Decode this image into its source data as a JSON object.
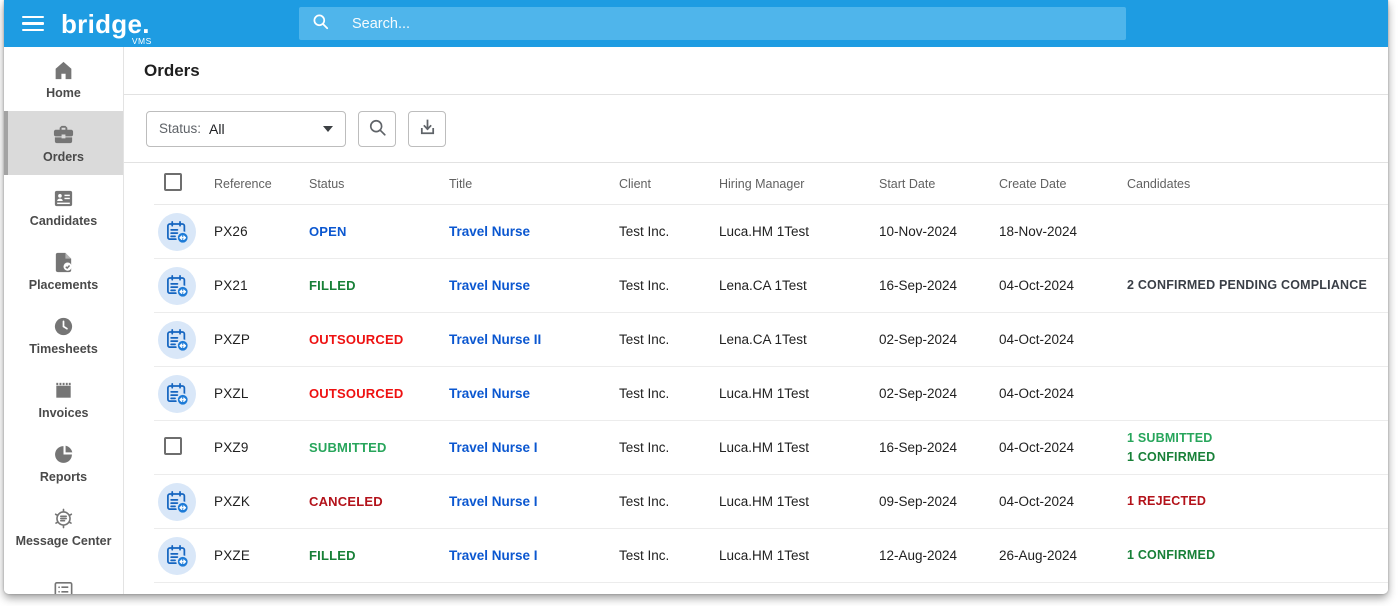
{
  "header": {
    "logo": "bridge.",
    "logo_sub": "VMS",
    "search_placeholder": "Search...",
    "bar_color": "#1E9CE2",
    "search_bg_color": "#4FB5EB"
  },
  "sidebar": {
    "items": [
      {
        "label": "Home",
        "icon": "home",
        "active": false
      },
      {
        "label": "Orders",
        "icon": "briefcase",
        "active": true
      },
      {
        "label": "Candidates",
        "icon": "contact-card",
        "active": false
      },
      {
        "label": "Placements",
        "icon": "document-check",
        "active": false
      },
      {
        "label": "Timesheets",
        "icon": "clock",
        "active": false
      },
      {
        "label": "Invoices",
        "icon": "receipt",
        "active": false
      },
      {
        "label": "Reports",
        "icon": "pie-chart",
        "active": false
      },
      {
        "label": "Message Center",
        "icon": "message-center",
        "active": false
      },
      {
        "label": "",
        "icon": "list",
        "active": false
      }
    ]
  },
  "page": {
    "title": "Orders",
    "filter_label": "Status:",
    "filter_value": "All"
  },
  "colors": {
    "link_blue": "#0B57D0",
    "green_dark": "#188038",
    "green_light": "#27A55B",
    "red_bright": "#EE1111",
    "red_dark": "#B3121A",
    "slate_dark": "#3A3F47"
  },
  "table": {
    "columns": [
      "Reference",
      "Status",
      "Title",
      "Client",
      "Hiring Manager",
      "Start Date",
      "Create Date",
      "Candidates"
    ],
    "rows": [
      {
        "leading": "icon",
        "reference": "PX26",
        "status": "OPEN",
        "status_color": "#0B57D0",
        "title": "Travel Nurse",
        "client": "Test Inc.",
        "hiring_manager": "Luca.HM 1Test",
        "start_date": "10-Nov-2024",
        "create_date": "18-Nov-2024",
        "candidates": []
      },
      {
        "leading": "icon",
        "reference": "PX21",
        "status": "FILLED",
        "status_color": "#188038",
        "title": "Travel Nurse",
        "client": "Test Inc.",
        "hiring_manager": "Lena.CA 1Test",
        "start_date": "16-Sep-2024",
        "create_date": "04-Oct-2024",
        "candidates": [
          {
            "text": "2 CONFIRMED PENDING COMPLIANCE",
            "color": "#3A3F47"
          }
        ]
      },
      {
        "leading": "icon",
        "reference": "PXZP",
        "status": "OUTSOURCED",
        "status_color": "#EE1111",
        "title": "Travel Nurse II",
        "client": "Test Inc.",
        "hiring_manager": "Lena.CA 1Test",
        "start_date": "02-Sep-2024",
        "create_date": "04-Oct-2024",
        "candidates": []
      },
      {
        "leading": "icon",
        "reference": "PXZL",
        "status": "OUTSOURCED",
        "status_color": "#EE1111",
        "title": "Travel Nurse",
        "client": "Test Inc.",
        "hiring_manager": "Luca.HM 1Test",
        "start_date": "02-Sep-2024",
        "create_date": "04-Oct-2024",
        "candidates": []
      },
      {
        "leading": "checkbox",
        "reference": "PXZ9",
        "status": "SUBMITTED",
        "status_color": "#27A55B",
        "title": "Travel Nurse I",
        "client": "Test Inc.",
        "hiring_manager": "Luca.HM 1Test",
        "start_date": "16-Sep-2024",
        "create_date": "04-Oct-2024",
        "candidates": [
          {
            "text": "1 SUBMITTED",
            "color": "#27A55B"
          },
          {
            "text": "1 CONFIRMED",
            "color": "#188038"
          }
        ]
      },
      {
        "leading": "icon",
        "reference": "PXZK",
        "status": "CANCELED",
        "status_color": "#B3121A",
        "title": "Travel Nurse I",
        "client": "Test Inc.",
        "hiring_manager": "Luca.HM 1Test",
        "start_date": "09-Sep-2024",
        "create_date": "04-Oct-2024",
        "candidates": [
          {
            "text": "1 REJECTED",
            "color": "#B3121A"
          }
        ]
      },
      {
        "leading": "icon",
        "reference": "PXZE",
        "status": "FILLED",
        "status_color": "#188038",
        "title": "Travel Nurse I",
        "client": "Test Inc.",
        "hiring_manager": "Luca.HM 1Test",
        "start_date": "12-Aug-2024",
        "create_date": "26-Aug-2024",
        "candidates": [
          {
            "text": "1 CONFIRMED",
            "color": "#188038"
          }
        ]
      }
    ]
  }
}
